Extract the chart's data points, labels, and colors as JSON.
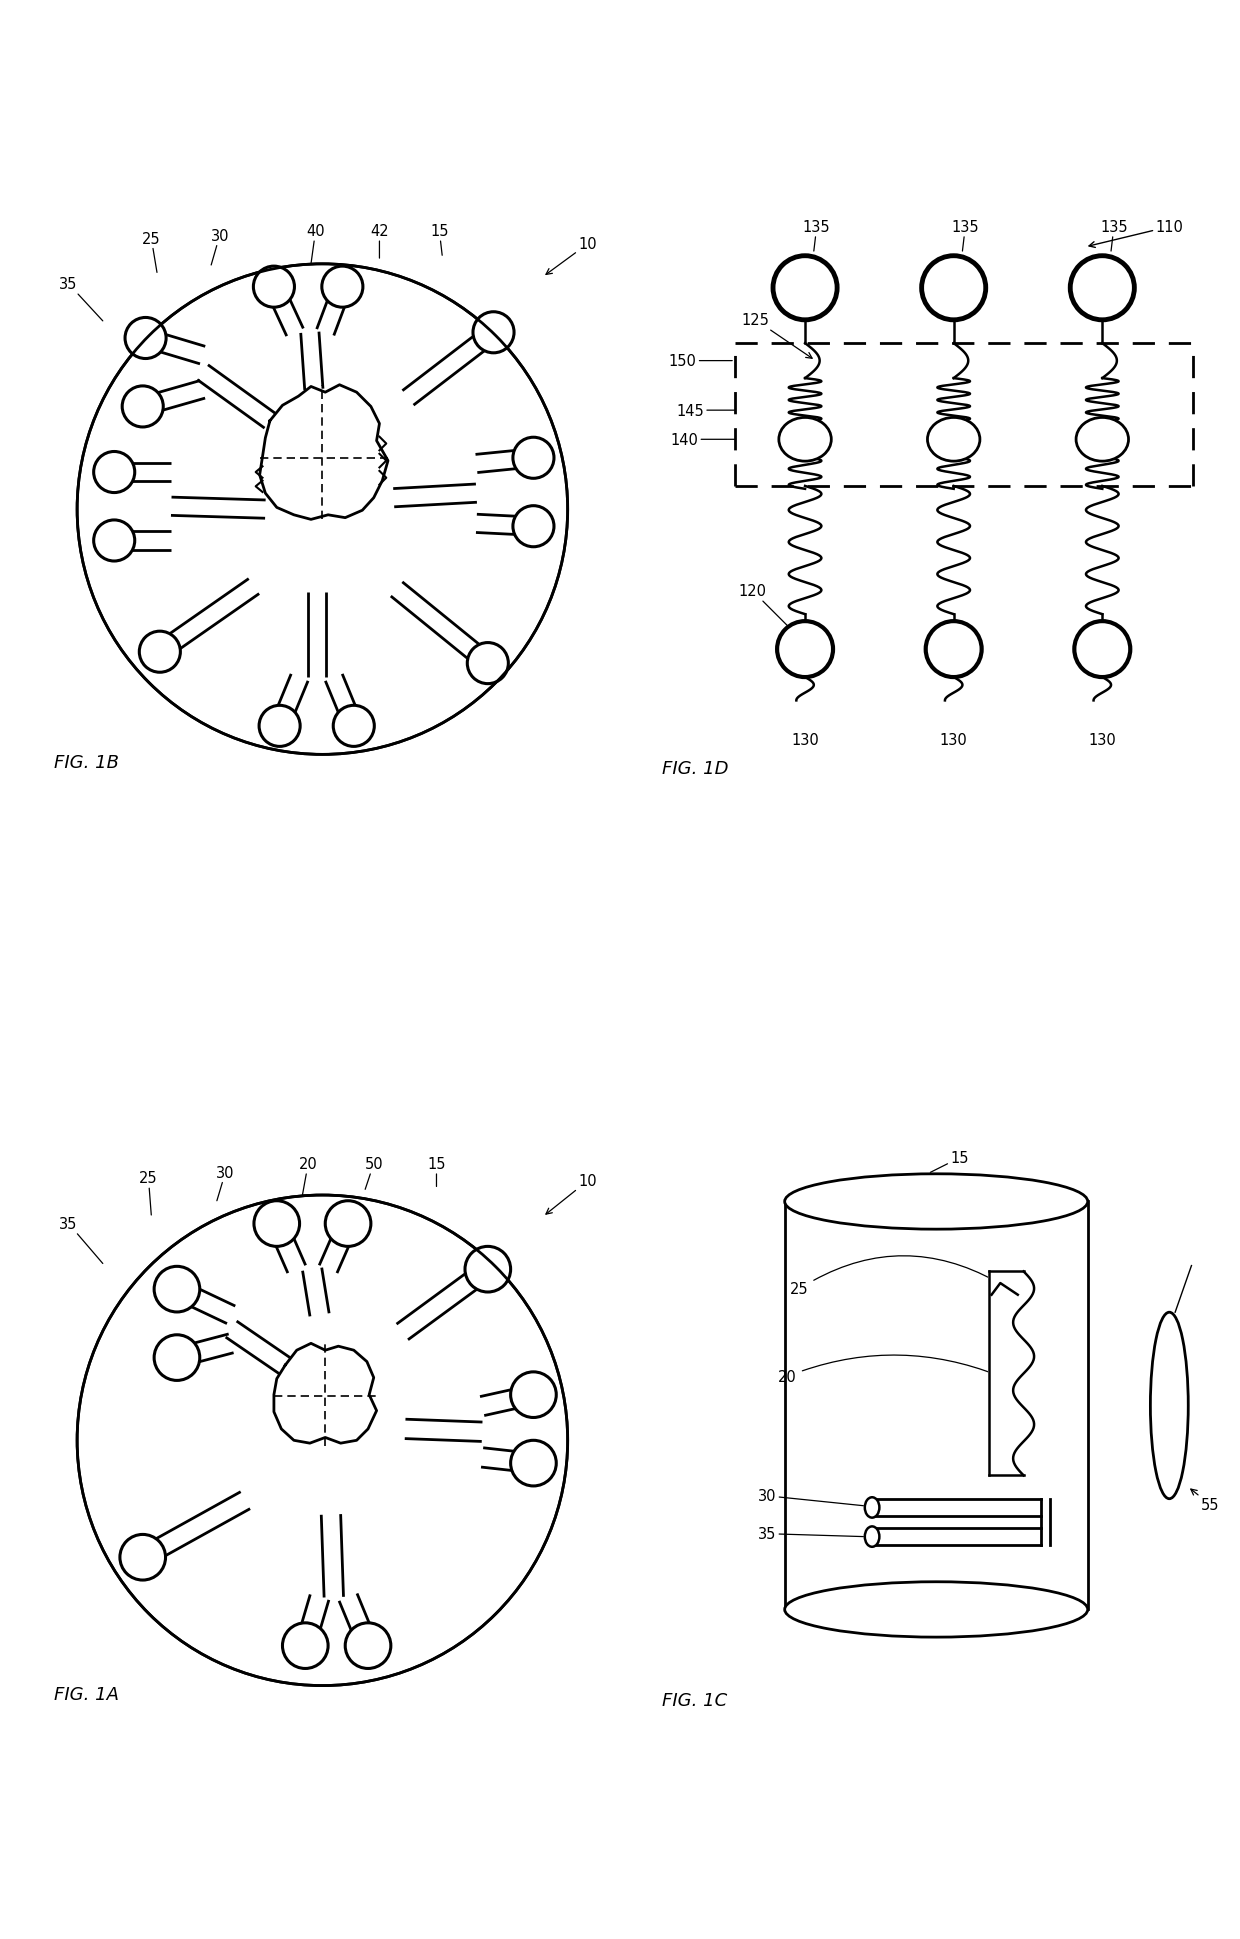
{
  "bg_color": "#ffffff",
  "fig_labels": [
    "FIG. 1A",
    "FIG. 1B",
    "FIG. 1C",
    "FIG. 1D"
  ],
  "layout": {
    "ax1B": [
      0.03,
      0.51,
      0.46,
      0.46
    ],
    "ax1D": [
      0.52,
      0.51,
      0.47,
      0.46
    ],
    "ax1A": [
      0.03,
      0.03,
      0.46,
      0.46
    ],
    "ax1C": [
      0.52,
      0.03,
      0.47,
      0.46
    ]
  }
}
